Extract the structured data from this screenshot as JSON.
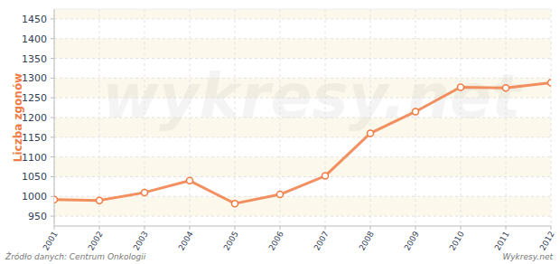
{
  "chart_data": {
    "type": "line",
    "y_label": "Liczba zgonów",
    "source": "Źródło danych: Centrum Onkologii",
    "credit": "Wykresy.net",
    "watermark": "wykresy.net",
    "categories": [
      "2001",
      "2002",
      "2003",
      "2004",
      "2005",
      "2006",
      "2007",
      "2008",
      "2009",
      "2010",
      "2011",
      "2012"
    ],
    "values": [
      992,
      990,
      1010,
      1040,
      982,
      1005,
      1052,
      1160,
      1215,
      1277,
      1275,
      1288
    ],
    "color": "#f07c45",
    "marker": "circle",
    "ylim": [
      925,
      1475
    ],
    "yticks": [
      950,
      1000,
      1050,
      1100,
      1150,
      1200,
      1250,
      1300,
      1350,
      1400,
      1450
    ],
    "grid": true
  }
}
